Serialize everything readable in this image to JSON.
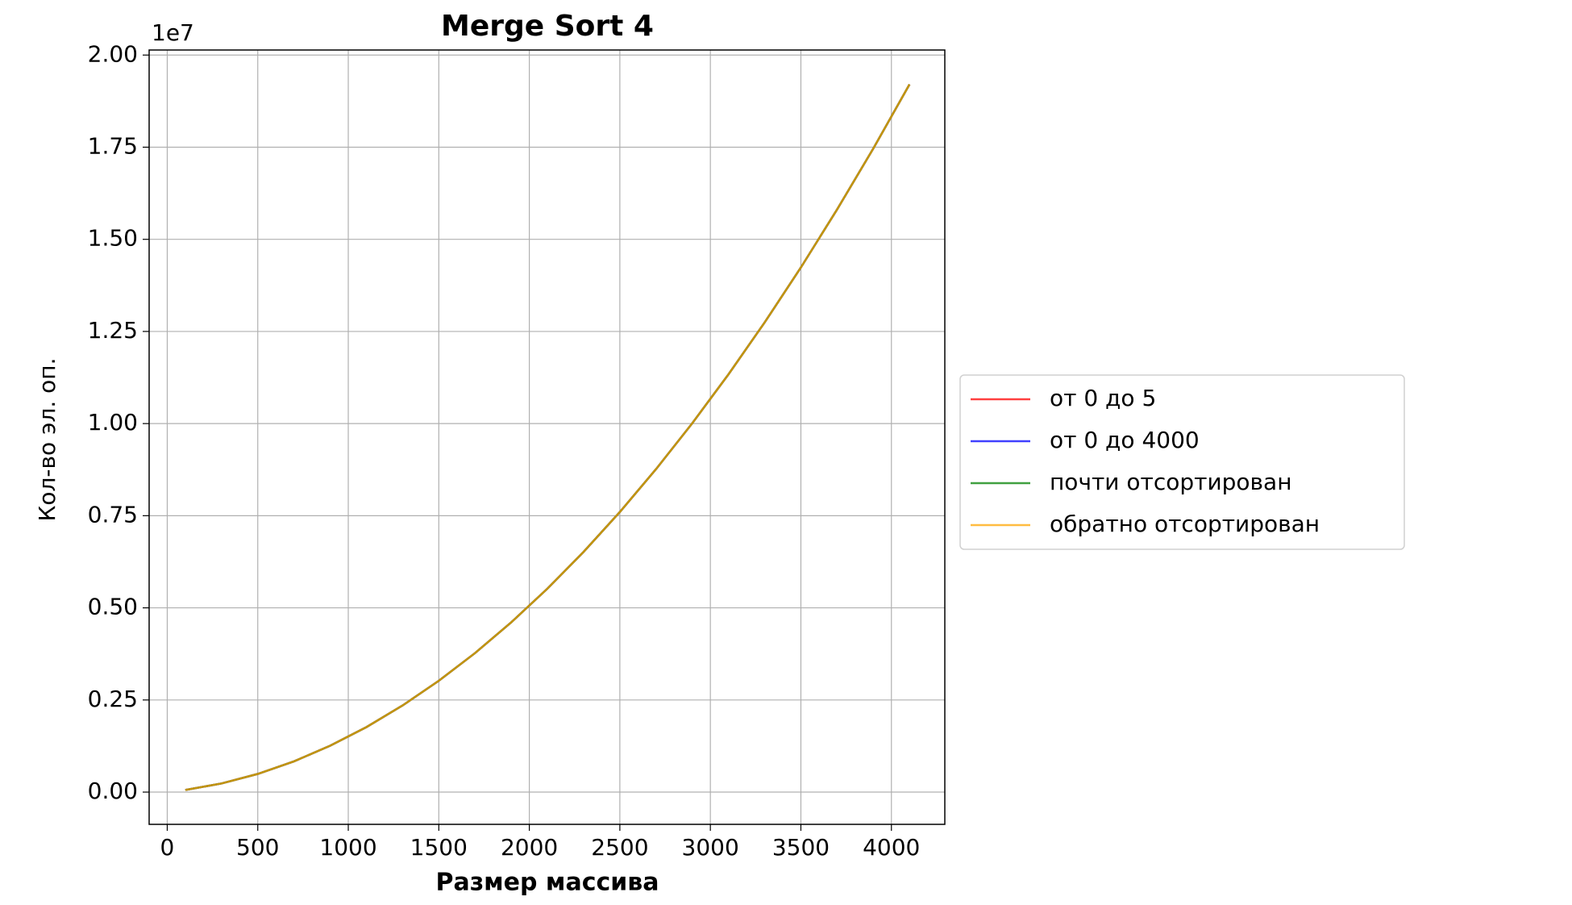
{
  "chart_data": {
    "type": "line",
    "title": "Merge Sort 4",
    "xlabel": "Размер массива",
    "ylabel": "Кол-во эл. оп.",
    "y_offset_label": "1e7",
    "x": [
      100,
      300,
      500,
      700,
      900,
      1100,
      1300,
      1500,
      1700,
      1900,
      2100,
      2300,
      2500,
      2700,
      2900,
      3100,
      3300,
      3500,
      3700,
      3900,
      4100
    ],
    "series": [
      {
        "name": "от 0 до 5",
        "color": "#ff0000",
        "values": [
          0.0058,
          0.0234,
          0.0493,
          0.0834,
          0.1258,
          0.1763,
          0.2351,
          0.302,
          0.3772,
          0.4606,
          0.5522,
          0.6521,
          0.7601,
          0.8764,
          1.0009,
          1.1336,
          1.2745,
          1.4236,
          1.581,
          1.7465,
          1.9203
        ]
      },
      {
        "name": "от 0 до 4000",
        "color": "#0000ff",
        "values": [
          0.0058,
          0.0234,
          0.0493,
          0.0834,
          0.1258,
          0.1763,
          0.2351,
          0.302,
          0.3772,
          0.4606,
          0.5522,
          0.6521,
          0.7601,
          0.8764,
          1.0009,
          1.1336,
          1.2745,
          1.4236,
          1.581,
          1.7465,
          1.9203
        ]
      },
      {
        "name": "почти отсортирован",
        "color": "#008000",
        "values": [
          0.0058,
          0.0234,
          0.0493,
          0.0834,
          0.1258,
          0.1763,
          0.2351,
          0.302,
          0.3772,
          0.4606,
          0.5522,
          0.6521,
          0.7601,
          0.8764,
          1.0009,
          1.1336,
          1.2745,
          1.4236,
          1.581,
          1.7465,
          1.9203
        ]
      },
      {
        "name": "обратно отсортирован",
        "color": "#ffa500",
        "values": [
          0.0058,
          0.0234,
          0.0493,
          0.0834,
          0.1258,
          0.1763,
          0.2351,
          0.302,
          0.3772,
          0.4606,
          0.5522,
          0.6521,
          0.7601,
          0.8764,
          1.0009,
          1.1336,
          1.2745,
          1.4236,
          1.581,
          1.7465,
          1.9203
        ]
      }
    ],
    "xlim": [
      -100,
      4295
    ],
    "xticks": [
      0,
      500,
      1000,
      1500,
      2000,
      2500,
      3000,
      3500,
      4000
    ],
    "ylim": [
      -0.0875,
      2.0137
    ],
    "yticks": [
      {
        "value": 0,
        "label": "0.00"
      },
      0.25,
      {
        "value": 0.5,
        "label": "0.50"
      },
      0.75,
      {
        "value": 1,
        "label": "1.00"
      },
      1.25,
      {
        "value": 1.5,
        "label": "1.50"
      },
      1.75,
      {
        "value": 2,
        "label": "2.00"
      }
    ],
    "grid": true,
    "legend": "outside-right"
  }
}
